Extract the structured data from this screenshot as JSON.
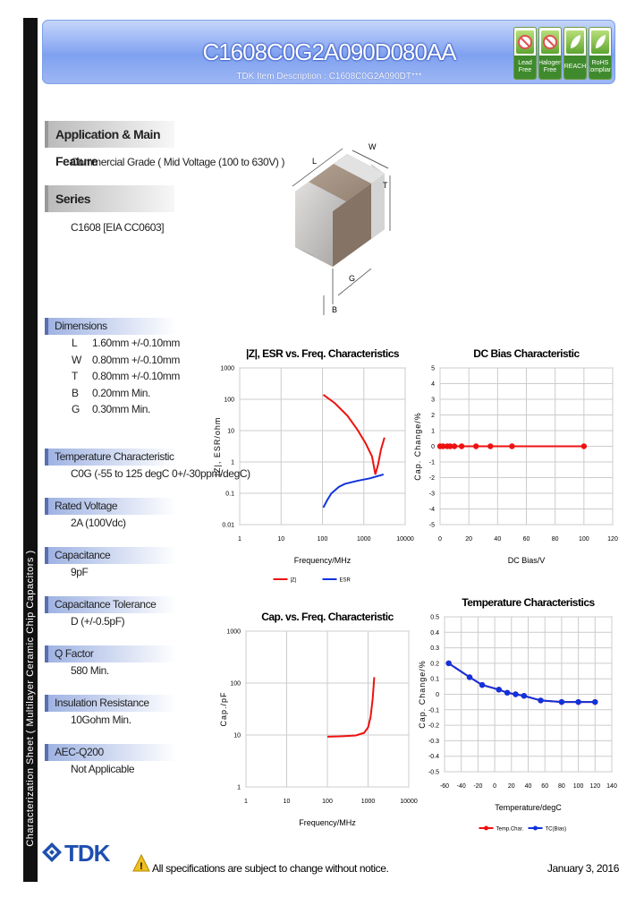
{
  "header": {
    "title": "C1608C0G2A090D080AA",
    "description": "TDK Item Description : C1608C0G2A090DT***"
  },
  "badges": [
    "Lead Free",
    "Halogen Free",
    "REACH",
    "RoHS Compliant"
  ],
  "side_text": "Characterization Sheet ( Multilayer Ceramic Chip Capacitors )",
  "application": {
    "heading": "Application & Main Feature",
    "text": "Commercial Grade ( Mid Voltage (100 to 630V) )"
  },
  "series": {
    "heading": "Series",
    "text": "C1608 [EIA CC0603]"
  },
  "diagram_labels": [
    "L",
    "W",
    "T",
    "G",
    "B"
  ],
  "specs": [
    {
      "heading": "Dimensions",
      "rows": [
        [
          "L",
          "1.60mm +/-0.10mm"
        ],
        [
          "W",
          "0.80mm +/-0.10mm"
        ],
        [
          "T",
          "0.80mm +/-0.10mm"
        ],
        [
          "B",
          "0.20mm Min."
        ],
        [
          "G",
          "0.30mm Min."
        ]
      ]
    },
    {
      "heading": "Temperature Characteristic",
      "text": "C0G (-55 to 125 degC 0+/-30ppm/degC)"
    },
    {
      "heading": "Rated Voltage",
      "text": "2A (100Vdc)"
    },
    {
      "heading": "Capacitance",
      "text": "9pF"
    },
    {
      "heading": "Capacitance Tolerance",
      "text": "D (+/-0.5pF)"
    },
    {
      "heading": "Q Factor",
      "text": "580 Min."
    },
    {
      "heading": "Insulation Resistance",
      "text": "10Gohm Min."
    },
    {
      "heading": "AEC-Q200",
      "text": "Not Applicable"
    }
  ],
  "chart_data": [
    {
      "type": "line",
      "title": "|Z|, ESR vs. Freq. Characteristics",
      "x_label": "Frequency/MHz",
      "y_label": "|Z|, ESR/ohm",
      "x_log": true,
      "y_log": true,
      "grid": true,
      "legend": "bottom",
      "xlim": [
        1,
        10000
      ],
      "ylim": [
        0.01,
        1000
      ],
      "xticks": [
        1,
        10,
        100,
        1000,
        10000
      ],
      "yticks": [
        0.01,
        0.1,
        1,
        10,
        100,
        1000
      ],
      "series": [
        {
          "name": "|Z|",
          "color": "#ee1111",
          "x": [
            105,
            200,
            400,
            700,
            1100,
            1580,
            1900,
            2200,
            2600,
            3160
          ],
          "values": [
            140,
            75,
            30,
            10.7,
            4,
            1.5,
            0.4,
            0.8,
            2.5,
            6
          ]
        },
        {
          "name": "ESR",
          "color": "#1133dd",
          "x": [
            105,
            130,
            165,
            250,
            350,
            700,
            1400,
            3000
          ],
          "values": [
            0.035,
            0.06,
            0.1,
            0.16,
            0.2,
            0.25,
            0.3,
            0.4
          ]
        }
      ]
    },
    {
      "type": "line",
      "title": "DC Bias Characteristic",
      "x_label": "DC Bias/V",
      "y_label": "Cap. Change/%",
      "grid": true,
      "markers": true,
      "xlim": [
        0,
        120
      ],
      "ylim": [
        -5,
        5
      ],
      "xticks": [
        0,
        20,
        40,
        60,
        80,
        100,
        120
      ],
      "yticks": [
        5,
        4,
        3,
        2,
        1,
        0,
        -1,
        -2,
        -3,
        -4,
        -5
      ],
      "series": [
        {
          "color": "#ee1111",
          "x": [
            0,
            2,
            5,
            7,
            10,
            15,
            25,
            35,
            50,
            100
          ],
          "values": [
            0,
            0,
            0,
            0,
            0,
            0,
            0,
            0,
            0,
            0
          ]
        }
      ]
    },
    {
      "type": "line",
      "title": "Cap. vs. Freq. Characteristic",
      "x_label": "Frequency/MHz",
      "y_label": "Cap./pF",
      "x_log": true,
      "y_log": true,
      "grid": true,
      "xlim": [
        1,
        10000
      ],
      "ylim": [
        1,
        1000
      ],
      "xticks": [
        1,
        10,
        100,
        1000,
        10000
      ],
      "yticks": [
        1,
        10,
        100,
        1000
      ],
      "series": [
        {
          "color": "#ee1111",
          "x": [
            100,
            200,
            500,
            800,
            1000,
            1150,
            1300,
            1420
          ],
          "values": [
            9.3,
            9.4,
            9.8,
            11,
            14,
            22,
            50,
            130
          ]
        }
      ]
    },
    {
      "type": "line",
      "title": "Temperature Characteristics",
      "x_label": "Temperature/degC",
      "y_label": "Cap. Change/%",
      "grid": true,
      "markers": true,
      "legend": "bottom",
      "xlim": [
        -60,
        140
      ],
      "ylim": [
        -0.5,
        0.5
      ],
      "xticks": [
        -60,
        -40,
        -20,
        0,
        20,
        40,
        60,
        80,
        100,
        120,
        140
      ],
      "yticks": [
        0.5,
        0.4,
        0.3,
        0.2,
        0.1,
        0,
        -0.1,
        -0.2,
        -0.3,
        -0.4,
        -0.5
      ],
      "series": [
        {
          "name": "Temp.Char.",
          "color": "#ee1111",
          "x": [
            -55,
            -30,
            -15,
            5,
            15,
            25,
            35,
            55,
            80,
            100,
            120
          ],
          "values": [
            0.2,
            0.11,
            0.06,
            0.03,
            0.01,
            0,
            -0.01,
            -0.04,
            -0.05,
            -0.05,
            -0.05
          ]
        },
        {
          "name": "TC(Bias)",
          "color": "#1133dd",
          "x": [
            -55,
            -30,
            -15,
            5,
            15,
            25,
            35,
            55,
            80,
            100,
            120
          ],
          "values": [
            0.2,
            0.11,
            0.06,
            0.03,
            0.01,
            0,
            -0.01,
            -0.04,
            -0.05,
            -0.05,
            -0.05
          ]
        }
      ]
    }
  ],
  "footer": {
    "logo": "TDK",
    "notice": "All specifications are subject to change without notice.",
    "date": "January 3, 2016"
  }
}
